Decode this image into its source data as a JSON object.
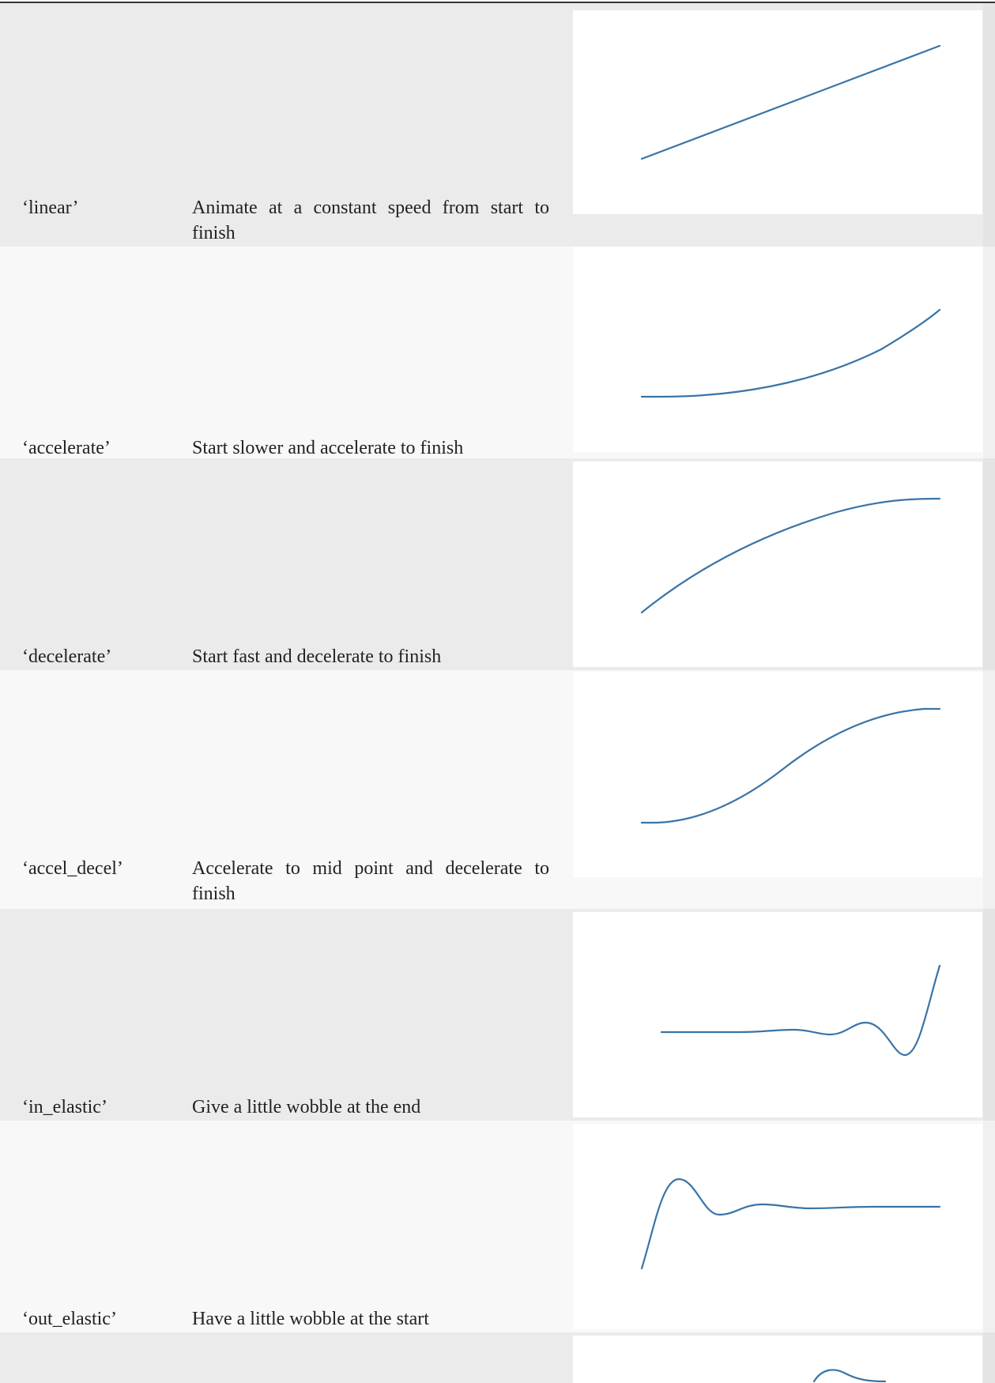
{
  "table": {
    "rows": [
      {
        "name": "‘linear’",
        "description": "Animate at a constant speed from start to finish",
        "curve_icon": "linear-curve"
      },
      {
        "name": "‘accelerate’",
        "description": "Start slower and accelerate to finish",
        "curve_icon": "accelerate-curve"
      },
      {
        "name": "‘decelerate’",
        "description": "Start fast and decelerate to finish",
        "curve_icon": "decelerate-curve"
      },
      {
        "name": "‘accel_decel’",
        "description": "Accelerate to mid point and decelerate to finish",
        "curve_icon": "accel-decel-curve"
      },
      {
        "name": "‘in_elastic’",
        "description": "Give a little wobble at the end",
        "curve_icon": "in-elastic-curve"
      },
      {
        "name": "‘out_elastic’",
        "description": "Have a little wobble at the start",
        "curve_icon": "out-elastic-curve"
      },
      {
        "name": "",
        "description": "",
        "curve_icon": "partial-curve"
      }
    ]
  },
  "colors": {
    "curve": "#3a74a6",
    "row_odd": "#ebebeb",
    "row_even": "#f8f8f8",
    "rule": "#333333"
  }
}
